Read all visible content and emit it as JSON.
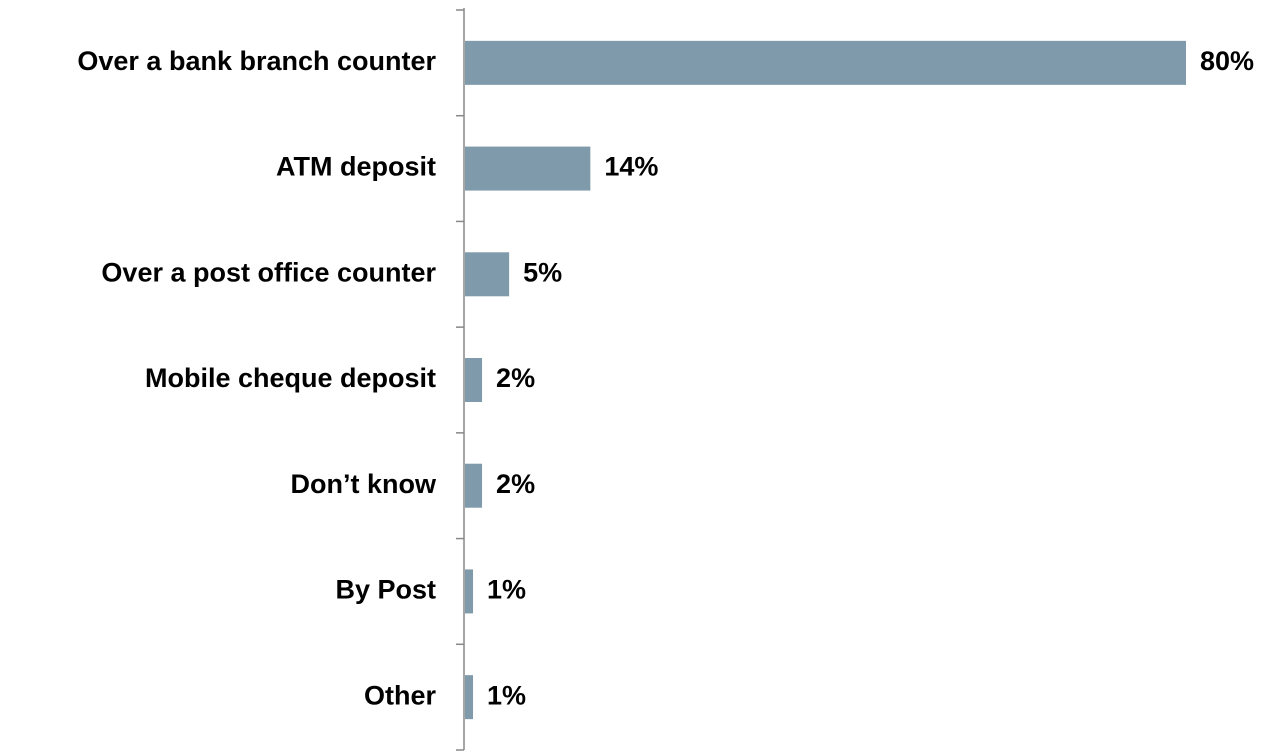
{
  "chart_data": {
    "type": "bar",
    "orientation": "horizontal",
    "categories": [
      "Over a bank branch counter",
      "ATM deposit",
      "Over a post office counter",
      "Mobile cheque deposit",
      "Don’t know",
      "By Post",
      "Other"
    ],
    "values": [
      80,
      14,
      5,
      2,
      2,
      1,
      1
    ],
    "value_labels": [
      "80%",
      "14%",
      "5%",
      "2%",
      "2%",
      "1%",
      "1%"
    ],
    "color": "#7f9aaa"
  }
}
